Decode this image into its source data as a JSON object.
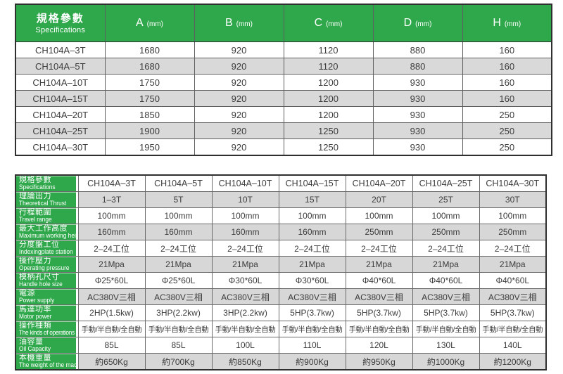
{
  "colors": {
    "accent_green": "#2fa84b",
    "row_alt_gray": "#d9d9d9",
    "border_dark": "#2f2f2f",
    "text": "#3c3c3c"
  },
  "top_table": {
    "header": {
      "label_zh": "規格參數",
      "label_en": "Specifications",
      "columns": [
        {
          "letter": "A",
          "unit": "(mm)"
        },
        {
          "letter": "B",
          "unit": "(mm)"
        },
        {
          "letter": "C",
          "unit": "(mm)"
        },
        {
          "letter": "D",
          "unit": "(mm)"
        },
        {
          "letter": "H",
          "unit": "(mm)"
        }
      ]
    },
    "rows": [
      {
        "model": "CH104A–3T",
        "values": [
          "1680",
          "920",
          "1120",
          "880",
          "160"
        ]
      },
      {
        "model": "CH104A–5T",
        "values": [
          "1680",
          "920",
          "1120",
          "880",
          "160"
        ]
      },
      {
        "model": "CH104A–10T",
        "values": [
          "1750",
          "920",
          "1200",
          "930",
          "160"
        ]
      },
      {
        "model": "CH104A–15T",
        "values": [
          "1750",
          "920",
          "1200",
          "930",
          "160"
        ]
      },
      {
        "model": "CH104A–20T",
        "values": [
          "1850",
          "920",
          "1200",
          "930",
          "250"
        ]
      },
      {
        "model": "CH104A–25T",
        "values": [
          "1900",
          "920",
          "1250",
          "930",
          "250"
        ]
      },
      {
        "model": "CH104A–30T",
        "values": [
          "1950",
          "920",
          "1250",
          "930",
          "250"
        ]
      }
    ]
  },
  "spec_table": {
    "rows": [
      {
        "zh": "規格參數",
        "en": "Specifications",
        "shaded": false,
        "values": [
          "CH104A–3T",
          "CH104A–5T",
          "CH104A–10T",
          "CH104A–15T",
          "CH104A–20T",
          "CH104A–25T",
          "CH104A–30T"
        ]
      },
      {
        "zh": "理論出力",
        "en": "Theoretical Thrust",
        "shaded": true,
        "values": [
          "1–3T",
          "5T",
          "10T",
          "15T",
          "20T",
          "25T",
          "30T"
        ]
      },
      {
        "zh": "行程範圍",
        "en": "Travel range",
        "shaded": false,
        "values": [
          "100mm",
          "100mm",
          "100mm",
          "100mm",
          "100mm",
          "100mm",
          "100mm"
        ]
      },
      {
        "zh": "最大工作高度",
        "en": "Maximum working height",
        "shaded": true,
        "values": [
          "160mm",
          "160mm",
          "160mm",
          "160mm",
          "250mm",
          "250mm",
          "250mm"
        ]
      },
      {
        "zh": "分度盤工位",
        "en": "Indexingplate station",
        "shaded": false,
        "values": [
          "2–24工位",
          "2–24工位",
          "2–24工位",
          "2–24工位",
          "2–24工位",
          "2–24工位",
          "2–24工位"
        ]
      },
      {
        "zh": "操作壓力",
        "en": "Operating pressure",
        "shaded": true,
        "values": [
          "21Mpa",
          "21Mpa",
          "21Mpa",
          "21Mpa",
          "21Mpa",
          "21Mpa",
          "21Mpa"
        ]
      },
      {
        "zh": "模柄孔尺寸",
        "en": "Handle hole size",
        "shaded": false,
        "values": [
          "Φ25*60L",
          "Φ25*60L",
          "Φ30*60L",
          "Φ30*60L",
          "Φ40*60L",
          "Φ40*60L",
          "Φ40*60L"
        ]
      },
      {
        "zh": "電源",
        "en": "Power supply",
        "shaded": true,
        "values": [
          "AC380V三相",
          "AC380V三相",
          "AC380V三相",
          "AC380V三相",
          "AC380V三相",
          "AC380V三相",
          "AC380V三相"
        ]
      },
      {
        "zh": "馬達功率",
        "en": "Motor power",
        "shaded": false,
        "values": [
          "2HP(1.5kw)",
          "3HP(2.2kw)",
          "3HP(2.2kw)",
          "5HP(3.7kw)",
          "5HP(3.7kw)",
          "5HP(3.7kw)",
          "5HP(3.7kw)"
        ]
      },
      {
        "zh": "操作種類",
        "en": "The kinds of operations",
        "shaded": false,
        "values": [
          "手動/半自動/全自動",
          "手動/半自動/全自動",
          "手動/半自動/全自動",
          "手動/半自動/全自動",
          "手動/半自動/全自動",
          "手動/半自動/全自動",
          "手動/半自動/全自動"
        ]
      },
      {
        "zh": "油容量",
        "en": "Oil Capacity",
        "shaded": false,
        "values": [
          "85L",
          "85L",
          "100L",
          "110L",
          "120L",
          "130L",
          "140L"
        ]
      },
      {
        "zh": "本機重量",
        "en": "The weight of the machine",
        "shaded": true,
        "values": [
          "約650Kg",
          "約700Kg",
          "約850Kg",
          "約900Kg",
          "約950Kg",
          "約1000Kg",
          "約1200Kg"
        ]
      }
    ]
  }
}
